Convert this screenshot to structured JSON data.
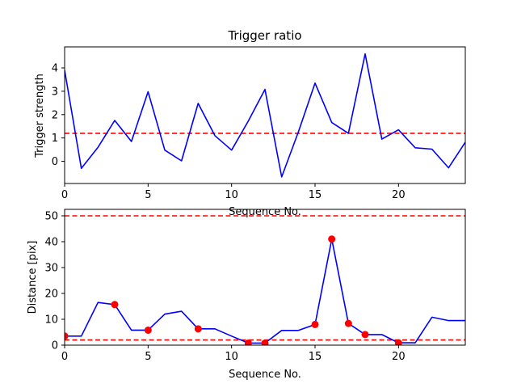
{
  "chart_data": [
    {
      "type": "line",
      "title": "Trigger ratio",
      "xlabel": "Sequence No.",
      "ylabel": "Trigger strength",
      "xlim": [
        0,
        24
      ],
      "ylim": [
        -0.95,
        4.9
      ],
      "xticks": [
        0,
        5,
        10,
        15,
        20
      ],
      "yticks": [
        0,
        1,
        2,
        3,
        4
      ],
      "grid": false,
      "series": [
        {
          "color": "#0000ff",
          "style": "solid",
          "x": [
            0,
            1,
            2,
            3,
            4,
            5,
            6,
            7,
            8,
            9,
            10,
            11,
            12,
            13,
            14,
            15,
            16,
            17,
            18,
            19,
            20,
            21,
            22,
            23,
            24
          ],
          "y": [
            3.9,
            -0.3,
            0.6,
            1.75,
            0.85,
            2.98,
            0.48,
            0.02,
            2.48,
            1.1,
            0.48,
            1.72,
            3.08,
            -0.67,
            1.25,
            3.35,
            1.66,
            1.2,
            4.6,
            0.95,
            1.35,
            0.58,
            0.52,
            -0.28,
            0.82
          ]
        }
      ],
      "hlines": [
        {
          "y": 1.2,
          "color": "#ff0000",
          "style": "dashed"
        }
      ]
    },
    {
      "type": "line",
      "title": "",
      "xlabel": "Sequence No.",
      "ylabel": "Distance [pix]",
      "xlim": [
        0,
        24
      ],
      "ylim": [
        0,
        52.5
      ],
      "xticks": [
        0,
        5,
        10,
        15,
        20
      ],
      "yticks": [
        0,
        10,
        20,
        30,
        40,
        50
      ],
      "grid": false,
      "series": [
        {
          "color": "#0000ff",
          "style": "solid",
          "x": [
            0,
            1,
            2,
            3,
            4,
            5,
            6,
            7,
            8,
            9,
            10,
            11,
            12,
            13,
            14,
            15,
            16,
            17,
            18,
            19,
            20,
            21,
            22,
            23,
            24
          ],
          "y": [
            3.5,
            3.5,
            16.5,
            15.7,
            5.8,
            5.8,
            12.0,
            13.1,
            6.3,
            6.3,
            3.5,
            0.8,
            0.8,
            5.7,
            5.7,
            8.0,
            41.0,
            8.4,
            4.1,
            4.1,
            0.9,
            0.9,
            10.8,
            9.5,
            9.5
          ]
        },
        {
          "color": "#ff0000",
          "style": "markers",
          "x": [
            0,
            3,
            5,
            8,
            11,
            12,
            15,
            16,
            17,
            18,
            20
          ],
          "y": [
            3.5,
            15.7,
            5.8,
            6.3,
            0.8,
            0.8,
            8.0,
            41.0,
            8.4,
            4.1,
            0.9
          ]
        }
      ],
      "hlines": [
        {
          "y": 50,
          "color": "#ff0000",
          "style": "dashed"
        },
        {
          "y": 2,
          "color": "#ff0000",
          "style": "dashed"
        }
      ]
    }
  ]
}
